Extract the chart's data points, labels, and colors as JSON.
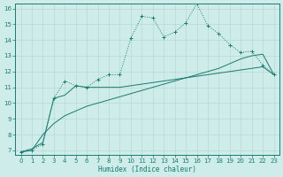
{
  "xlabel": "Humidex (Indice chaleur)",
  "bg_color": "#cdecea",
  "grid_color": "#b8d8d4",
  "line_color": "#1a7a6e",
  "xlim": [
    -0.5,
    23.5
  ],
  "ylim": [
    6.7,
    16.3
  ],
  "xticks": [
    0,
    1,
    2,
    3,
    4,
    5,
    6,
    7,
    8,
    9,
    10,
    11,
    12,
    13,
    14,
    15,
    16,
    17,
    18,
    19,
    20,
    21,
    22,
    23
  ],
  "yticks": [
    7,
    8,
    9,
    10,
    11,
    12,
    13,
    14,
    15,
    16
  ],
  "line1_x": [
    0,
    1,
    2,
    3,
    4,
    5,
    6,
    7,
    8,
    9,
    10,
    11,
    12,
    13,
    14,
    15,
    16,
    17,
    18,
    19,
    20,
    21,
    22,
    23
  ],
  "line1_y": [
    6.9,
    7.0,
    7.4,
    10.3,
    11.4,
    11.1,
    11.0,
    11.5,
    11.8,
    11.8,
    14.1,
    15.5,
    15.4,
    14.2,
    14.5,
    15.1,
    16.3,
    14.9,
    14.4,
    13.7,
    13.2,
    13.3,
    12.4,
    11.8
  ],
  "line2_x": [
    0,
    1,
    2,
    3,
    4,
    5,
    6,
    7,
    8,
    9,
    10,
    11,
    12,
    13,
    14,
    15,
    16,
    17,
    18,
    19,
    20,
    21,
    22,
    23
  ],
  "line2_y": [
    6.9,
    7.1,
    7.5,
    10.3,
    10.5,
    11.1,
    11.0,
    11.0,
    11.0,
    11.0,
    11.1,
    11.2,
    11.3,
    11.4,
    11.5,
    11.6,
    11.7,
    11.8,
    11.9,
    12.0,
    12.1,
    12.2,
    12.3,
    11.8
  ],
  "line3_x": [
    0,
    1,
    2,
    3,
    4,
    5,
    6,
    7,
    8,
    9,
    10,
    11,
    12,
    13,
    14,
    15,
    16,
    17,
    18,
    19,
    20,
    21,
    22,
    23
  ],
  "line3_y": [
    6.9,
    7.0,
    8.0,
    8.7,
    9.2,
    9.5,
    9.8,
    10.0,
    10.2,
    10.4,
    10.6,
    10.8,
    11.0,
    11.2,
    11.4,
    11.6,
    11.8,
    12.0,
    12.2,
    12.5,
    12.8,
    13.0,
    13.1,
    11.8
  ]
}
